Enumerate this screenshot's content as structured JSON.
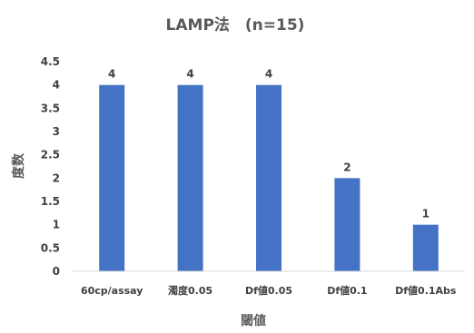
{
  "chart_data": {
    "type": "bar",
    "title": "LAMP法　(n=15)",
    "xlabel": "閾値",
    "ylabel": "度数",
    "categories": [
      "60cp/assay",
      "濁度0.05",
      "Df値0.05",
      "Df値0.1",
      "Df値0.1Abs"
    ],
    "values": [
      4,
      4,
      4,
      2,
      1
    ],
    "ylim": [
      0,
      4.5
    ],
    "yticks": [
      "0",
      "0.5",
      "1",
      "1.5",
      "2",
      "2.5",
      "3",
      "3.5",
      "4",
      "4.5"
    ],
    "data_labels": [
      "4",
      "4",
      "4",
      "2",
      "1"
    ],
    "grid": false,
    "legend": "none",
    "bar_color": "#4472C4"
  }
}
